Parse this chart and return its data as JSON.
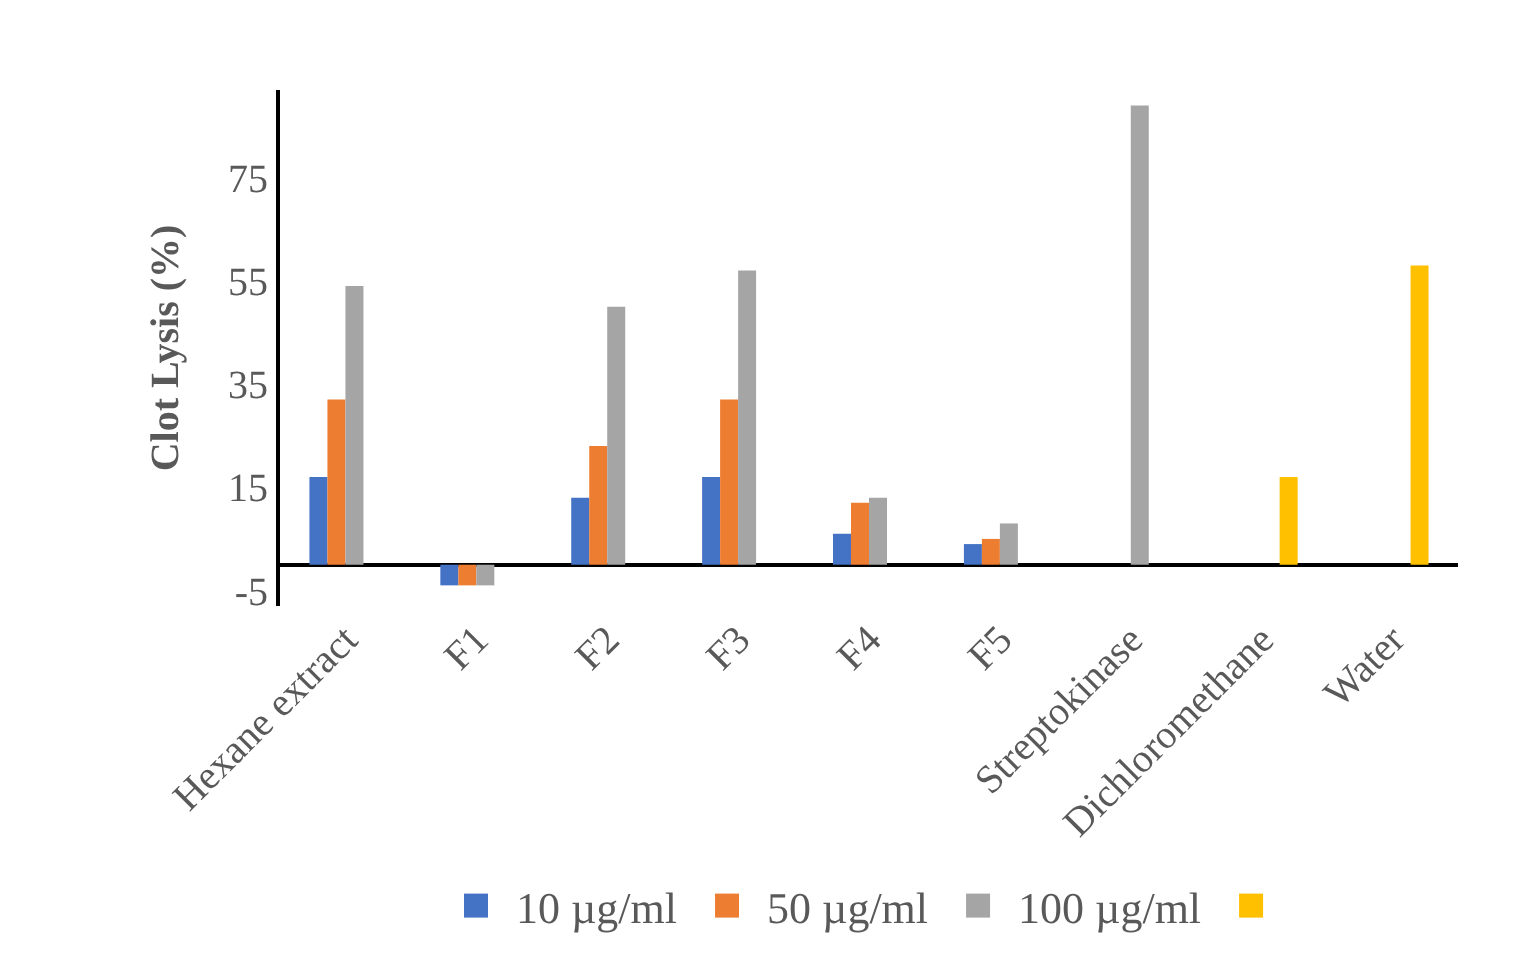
{
  "chart_data": {
    "type": "bar",
    "ylabel": "Clot Lysis (%)",
    "categories": [
      "Hexane extract",
      "F1",
      "F2",
      "F3",
      "F4",
      "F5",
      "Streptokinase",
      "Dichloromethane",
      "Water"
    ],
    "series": [
      {
        "name": "10 µg/ml",
        "color": "#4472c4",
        "values": [
          17,
          -4,
          13,
          17,
          6,
          4,
          null,
          null,
          null
        ]
      },
      {
        "name": "50 µg/ml",
        "color": "#ed7d31",
        "values": [
          32,
          -4,
          23,
          32,
          12,
          5,
          null,
          null,
          null
        ]
      },
      {
        "name": "100 µg/ml",
        "color": "#a5a5a5",
        "values": [
          54,
          -4,
          50,
          57,
          13,
          8,
          89,
          null,
          null
        ]
      },
      {
        "color": "#ffc000",
        "values": [
          null,
          null,
          null,
          null,
          null,
          null,
          null,
          17,
          58
        ]
      }
    ],
    "ylim": [
      -8,
      92
    ],
    "yticks": [
      -5,
      15,
      35,
      55,
      75
    ],
    "grid": false,
    "legend": "bottom"
  }
}
